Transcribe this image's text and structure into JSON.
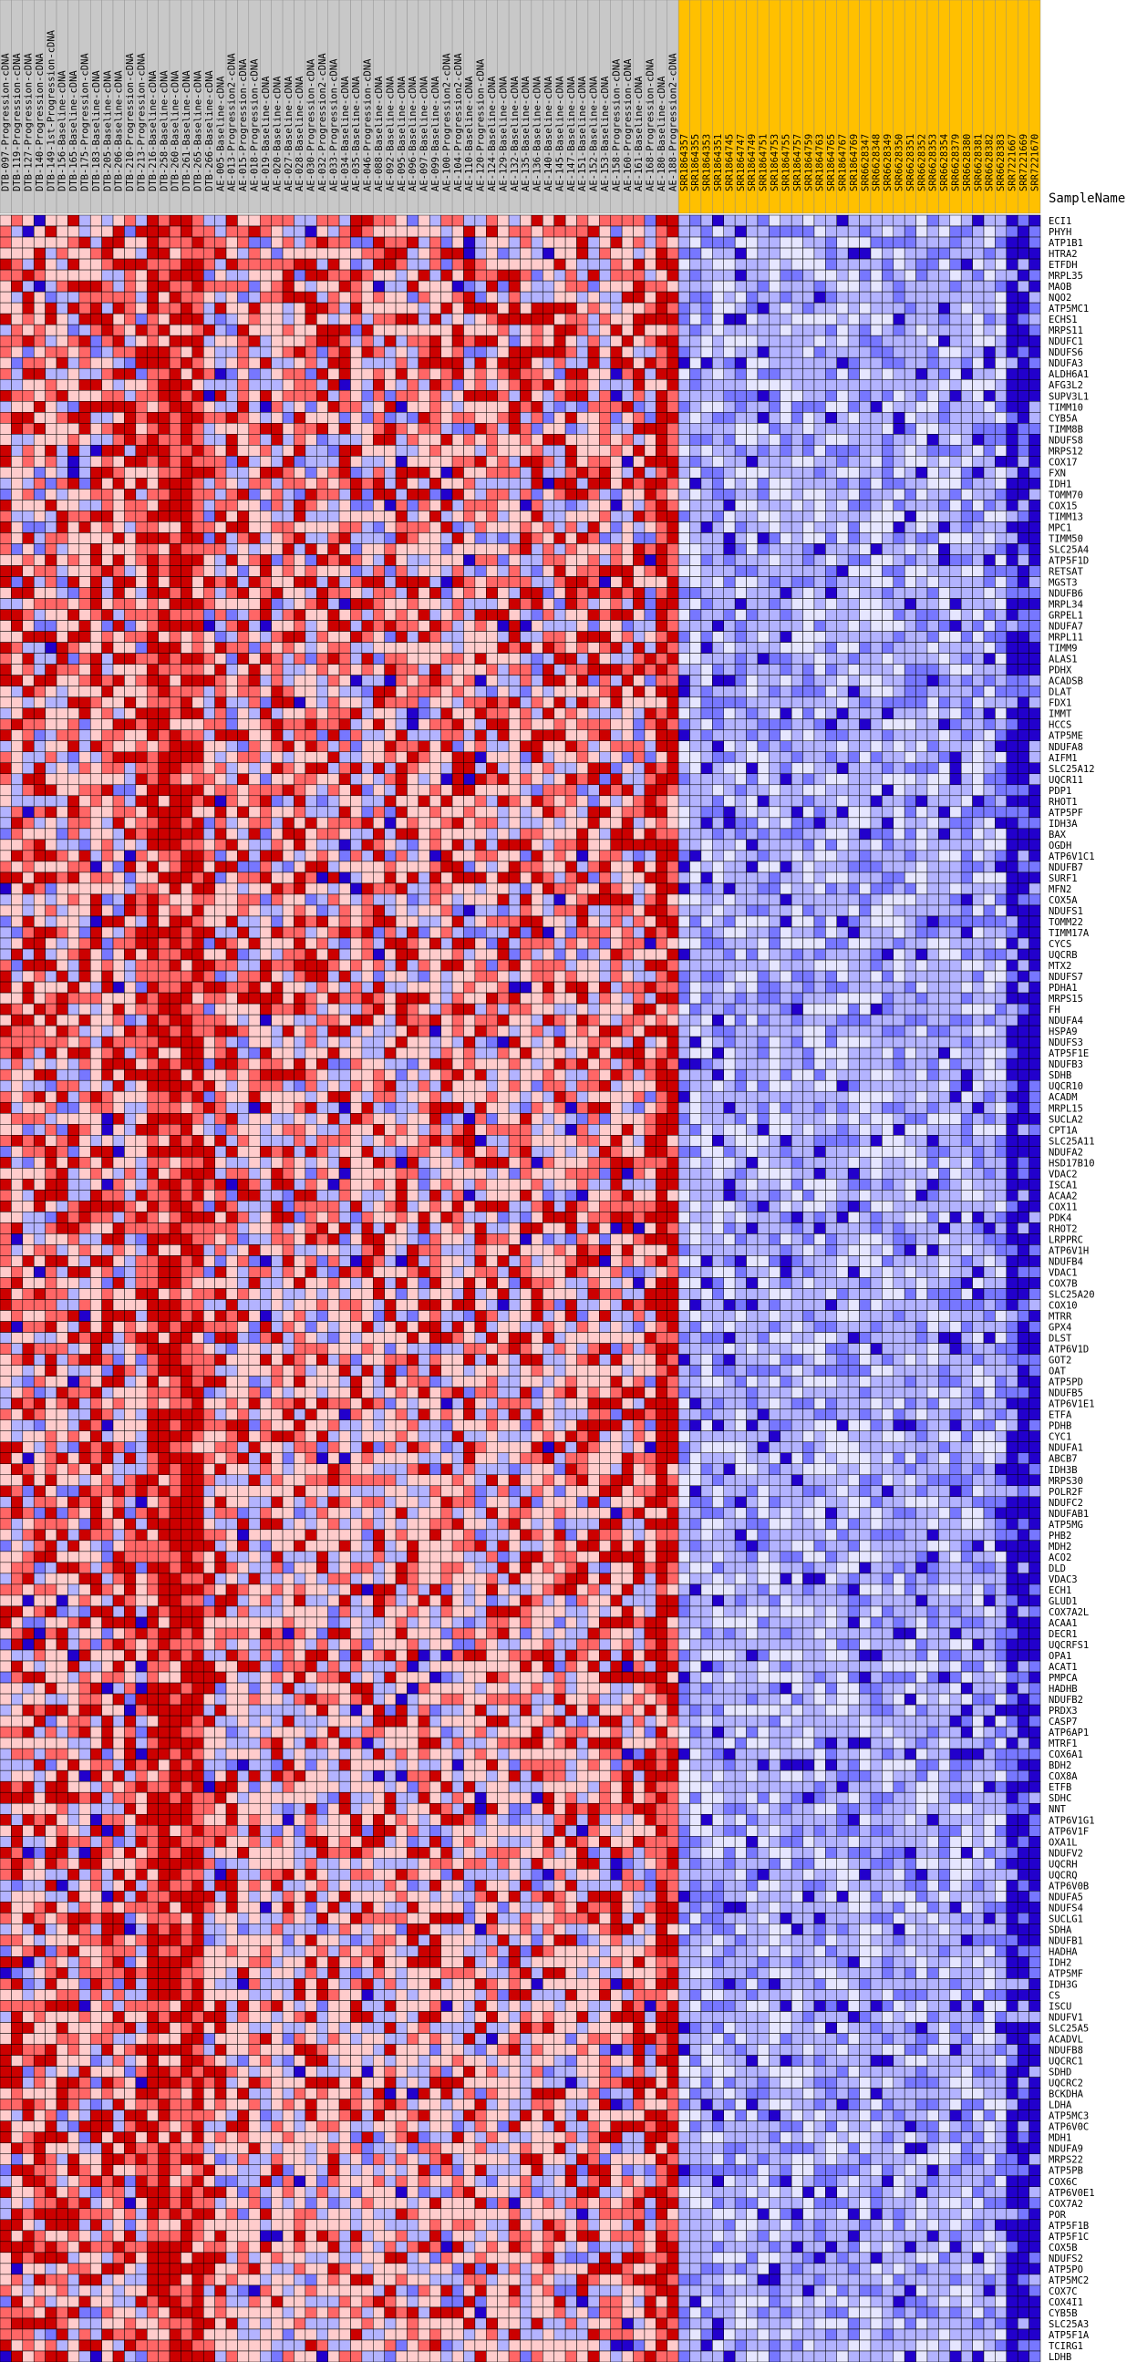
{
  "chart_data": {
    "type": "heatmap",
    "header_label": "SampleName",
    "colors": {
      "high": "#cc0000",
      "mid_high": "#ff6666",
      "low_high": "#ffcccc",
      "neutral": "#e6e6ff",
      "low": "#b3b3ff",
      "lower": "#7777ff",
      "lowest": "#2200cc",
      "group_gray": "#c8c8c8",
      "group_gold": "#ffc000",
      "grid": "#000000"
    },
    "column_groups": [
      {
        "name": "CDNA",
        "color": "gray",
        "count": 60
      },
      {
        "name": "SRR",
        "color": "gold",
        "count": 32
      }
    ],
    "columns": [
      "DTB-097-Progression-cDNA",
      "DTB-119-Progression-cDNA",
      "DTB-127-Progression-cDNA",
      "DTB-140-Progression-cDNA",
      "DTB-149-1st-Progression-cDNA",
      "DTB-156-Baseline-cDNA",
      "DTB-165-Baseline-cDNA",
      "DTB-175-Progression-cDNA",
      "DTB-183-Baseline-cDNA",
      "DTB-205-Baseline-cDNA",
      "DTB-206-Baseline-cDNA",
      "DTB-210-Progression-cDNA",
      "DTB-213-Progression-cDNA",
      "DTB-216-Baseline-cDNA",
      "DTB-258-Baseline-cDNA",
      "DTB-260-Baseline-cDNA",
      "DTB-261-Baseline-cDNA",
      "DTB-265-Baseline-cDNA",
      "DTB-266-Baseline-cDNA",
      "AE-005-Baseline-cDNA",
      "AE-013-Progression2-cDNA",
      "AE-015-Progression-cDNA",
      "AE-018-Progression-cDNA",
      "AE-019-Baseline-cDNA",
      "AE-020-Baseline-cDNA",
      "AE-027-Baseline-cDNA",
      "AE-028-Baseline-cDNA",
      "AE-030-Progression-cDNA",
      "AE-032-Progression2-cDNA",
      "AE-033-Progression-cDNA",
      "AE-034-Baseline-cDNA",
      "AE-035-Baseline-cDNA",
      "AE-046-Progression-cDNA",
      "AE-088-Baseline-cDNA",
      "AE-092-Baseline-cDNA",
      "AE-095-Baseline-cDNA",
      "AE-096-Baseline-cDNA",
      "AE-097-Baseline-cDNA",
      "AE-099-Baseline-cDNA",
      "AE-100-Progression2-cDNA",
      "AE-104-Progression2-cDNA",
      "AE-110-Baseline-cDNA",
      "AE-120-Progression-cDNA",
      "AE-124-Baseline-cDNA",
      "AE-129-Baseline-cDNA",
      "AE-132-Baseline-cDNA",
      "AE-135-Baseline-cDNA",
      "AE-136-Baseline-cDNA",
      "AE-140-Baseline-cDNA",
      "AE-145-Baseline-cDNA",
      "AE-147-Baseline-cDNA",
      "AE-151-Baseline-cDNA",
      "AE-152-Baseline-cDNA",
      "AE-153-Baseline-cDNA",
      "AE-158-Progression-cDNA",
      "AE-160-Progression-cDNA",
      "AE-161-Baseline-cDNA",
      "AE-168-Progression-cDNA",
      "AE-180-Baseline-cDNA",
      "AE-188-Progression2-cDNA",
      "SRR1864357",
      "SRR1864355",
      "SRR1864353",
      "SRR1864351",
      "SRR1864745",
      "SRR1864747",
      "SRR1864749",
      "SRR1864751",
      "SRR1864753",
      "SRR1864755",
      "SRR1864757",
      "SRR1864759",
      "SRR1864763",
      "SRR1864765",
      "SRR1864767",
      "SRR1864769",
      "SRR6628347",
      "SRR6628348",
      "SRR6628349",
      "SRR6628350",
      "SRR6628351",
      "SRR6628352",
      "SRR6628353",
      "SRR6628354",
      "SRR6628379",
      "SRR6628380",
      "SRR6628381",
      "SRR6628382",
      "SRR6628383",
      "SRR7221667",
      "SRR7221669",
      "SRR7221670"
    ],
    "rows": [
      "ECI1",
      "PHYH",
      "ATP1B1",
      "HTRA2",
      "ETFDH",
      "MRPL35",
      "MAOB",
      "NQO2",
      "ATP5MC1",
      "ECHS1",
      "MRPS11",
      "NDUFC1",
      "NDUFS6",
      "NDUFA3",
      "ALDH6A1",
      "AFG3L2",
      "SUPV3L1",
      "TIMM10",
      "CYB5A",
      "TIMM8B",
      "NDUFS8",
      "MRPS12",
      "COX17",
      "FXN",
      "IDH1",
      "TOMM70",
      "COX15",
      "TIMM13",
      "MPC1",
      "TIMM50",
      "SLC25A4",
      "ATP5F1D",
      "RETSAT",
      "MGST3",
      "NDUFB6",
      "MRPL34",
      "GRPEL1",
      "NDUFA7",
      "MRPL11",
      "TIMM9",
      "ALAS1",
      "PDHX",
      "ACADSB",
      "DLAT",
      "FDX1",
      "IMMT",
      "HCCS",
      "ATP5ME",
      "NDUFA8",
      "AIFM1",
      "SLC25A12",
      "UQCR11",
      "PDP1",
      "RHOT1",
      "ATP5PF",
      "IDH3A",
      "BAX",
      "OGDH",
      "ATP6V1C1",
      "NDUFB7",
      "SURF1",
      "MFN2",
      "COX5A",
      "NDUFS1",
      "TOMM22",
      "TIMM17A",
      "CYCS",
      "UQCRB",
      "MTX2",
      "NDUFS7",
      "PDHA1",
      "MRPS15",
      "FH",
      "NDUFA4",
      "HSPA9",
      "NDUFS3",
      "ATP5F1E",
      "NDUFB3",
      "SDHB",
      "UQCR10",
      "ACADM",
      "MRPL15",
      "SUCLA2",
      "CPT1A",
      "SLC25A11",
      "NDUFA2",
      "HSD17B10",
      "VDAC2",
      "ISCA1",
      "ACAA2",
      "COX11",
      "PDK4",
      "RHOT2",
      "LRPPRC",
      "ATP6V1H",
      "NDUFB4",
      "VDAC1",
      "COX7B",
      "SLC25A20",
      "COX10",
      "MTRR",
      "GPX4",
      "DLST",
      "ATP6V1D",
      "GOT2",
      "OAT",
      "ATP5PD",
      "NDUFB5",
      "ATP6V1E1",
      "ETFA",
      "PDHB",
      "CYC1",
      "NDUFA1",
      "ABCB7",
      "IDH3B",
      "MRPS30",
      "POLR2F",
      "NDUFC2",
      "NDUFAB1",
      "ATP5MG",
      "PHB2",
      "MDH2",
      "ACO2",
      "DLD",
      "VDAC3",
      "ECH1",
      "GLUD1",
      "COX7A2L",
      "ACAA1",
      "DECR1",
      "UQCRFS1",
      "OPA1",
      "ACAT1",
      "PMPCA",
      "HADHB",
      "NDUFB2",
      "PRDX3",
      "CASP7",
      "ATP6AP1",
      "MTRF1",
      "COX6A1",
      "BDH2",
      "COX8A",
      "ETFB",
      "SDHC",
      "NNT",
      "ATP6V1G1",
      "ATP6V1F",
      "OXA1L",
      "NDUFV2",
      "UQCRH",
      "UQCRQ",
      "ATP6V0B",
      "NDUFA5",
      "NDUFS4",
      "SUCLG1",
      "SDHA",
      "NDUFB1",
      "HADHA",
      "IDH2",
      "ATP5MF",
      "IDH3G",
      "CS",
      "ISCU",
      "NDUFV1",
      "SLC25A5",
      "ACADVL",
      "NDUFB8",
      "UQCRC1",
      "SDHD",
      "UQCRC2",
      "BCKDHA",
      "LDHA",
      "ATP5MC3",
      "ATP6V0C",
      "MDH1",
      "NDUFA9",
      "MRPS22",
      "ATP5PB",
      "COX6C",
      "ATP6V0E1",
      "COX7A2",
      "POR",
      "ATP5F1B",
      "ATP5F1C",
      "COX5B",
      "NDUFS2",
      "ATP5PO",
      "ATP5MC2",
      "COX7C",
      "COX4I1",
      "CYB5B",
      "SLC25A3",
      "ATP5F1A",
      "TCIRG1",
      "LDHB"
    ],
    "cell_values": "expression z-scores shown as color bins; CDNA columns predominantly red (high), SRR columns predominantly blue (low)"
  }
}
